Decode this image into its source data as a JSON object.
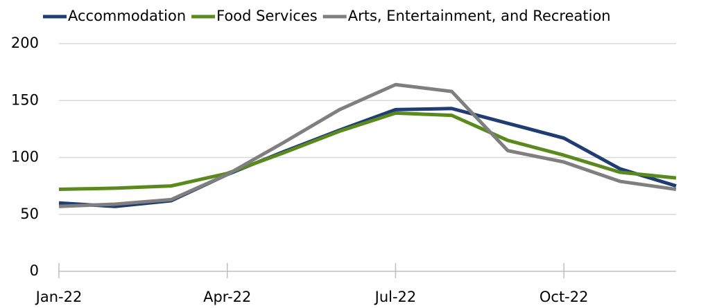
{
  "chart_data": {
    "type": "line",
    "categories": [
      "Jan-22",
      null,
      null,
      "Apr-22",
      null,
      null,
      "Jul-22",
      null,
      null,
      "Oct-22",
      null,
      null
    ],
    "series": [
      {
        "name": "Accommodation",
        "color": "#1f3d73",
        "values": [
          60,
          57,
          62,
          85,
          105,
          124,
          142,
          143,
          130,
          117,
          90,
          75
        ]
      },
      {
        "name": "Food Services",
        "color": "#5a8a1e",
        "values": [
          72,
          73,
          75,
          86,
          104,
          123,
          139,
          137,
          115,
          102,
          87,
          82
        ]
      },
      {
        "name": "Arts, Entertainment, and Recreation",
        "color": "#7f7f7f",
        "values": [
          57,
          59,
          63,
          85,
          113,
          142,
          164,
          158,
          106,
          96,
          79,
          72
        ]
      }
    ],
    "ylim": [
      0,
      200
    ],
    "yticks": [
      0,
      50,
      100,
      150,
      200
    ],
    "grid": true,
    "legend": "top"
  }
}
